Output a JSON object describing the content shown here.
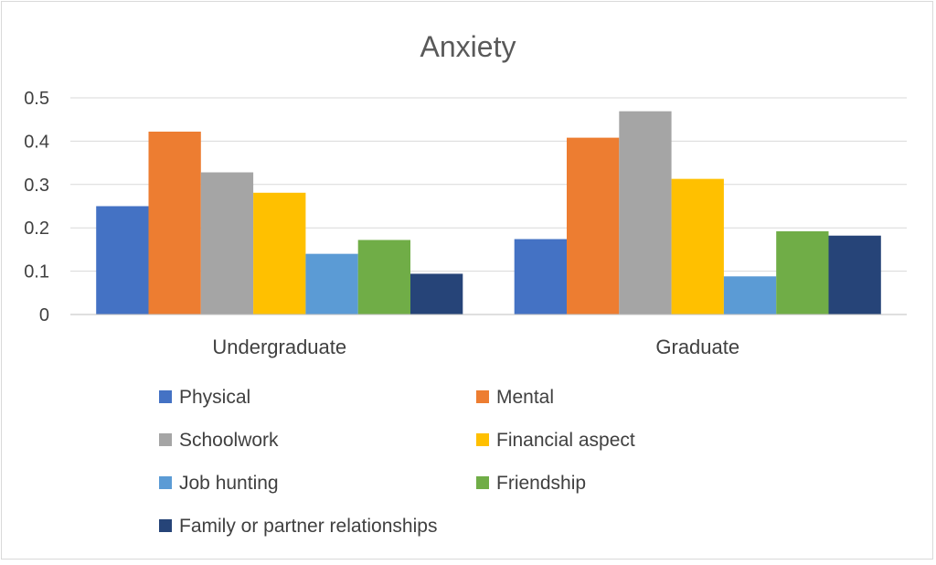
{
  "chart_data": {
    "type": "bar",
    "title": "Anxiety",
    "xlabel": "",
    "ylabel": "",
    "ylim": [
      0,
      0.5
    ],
    "yticks": [
      0,
      0.1,
      0.2,
      0.3,
      0.4,
      0.5
    ],
    "ytick_labels": [
      "0",
      "0.1",
      "0.2",
      "0.3",
      "0.4",
      "0.5"
    ],
    "grid": true,
    "legend_position": "bottom",
    "categories": [
      "Undergraduate",
      "Graduate"
    ],
    "series": [
      {
        "name": "Physical",
        "color": "#4472c4",
        "values": [
          0.25,
          0.174
        ]
      },
      {
        "name": "Mental",
        "color": "#ed7d31",
        "values": [
          0.422,
          0.408
        ]
      },
      {
        "name": "Schoolwork",
        "color": "#a5a5a5",
        "values": [
          0.328,
          0.469
        ]
      },
      {
        "name": "Financial aspect",
        "color": "#ffc000",
        "values": [
          0.281,
          0.313
        ]
      },
      {
        "name": "Job hunting",
        "color": "#5b9bd5",
        "values": [
          0.14,
          0.088
        ]
      },
      {
        "name": "Friendship",
        "color": "#70ad47",
        "values": [
          0.172,
          0.192
        ]
      },
      {
        "name": "Family or partner relationships",
        "color": "#264478",
        "values": [
          0.094,
          0.182
        ]
      }
    ]
  }
}
